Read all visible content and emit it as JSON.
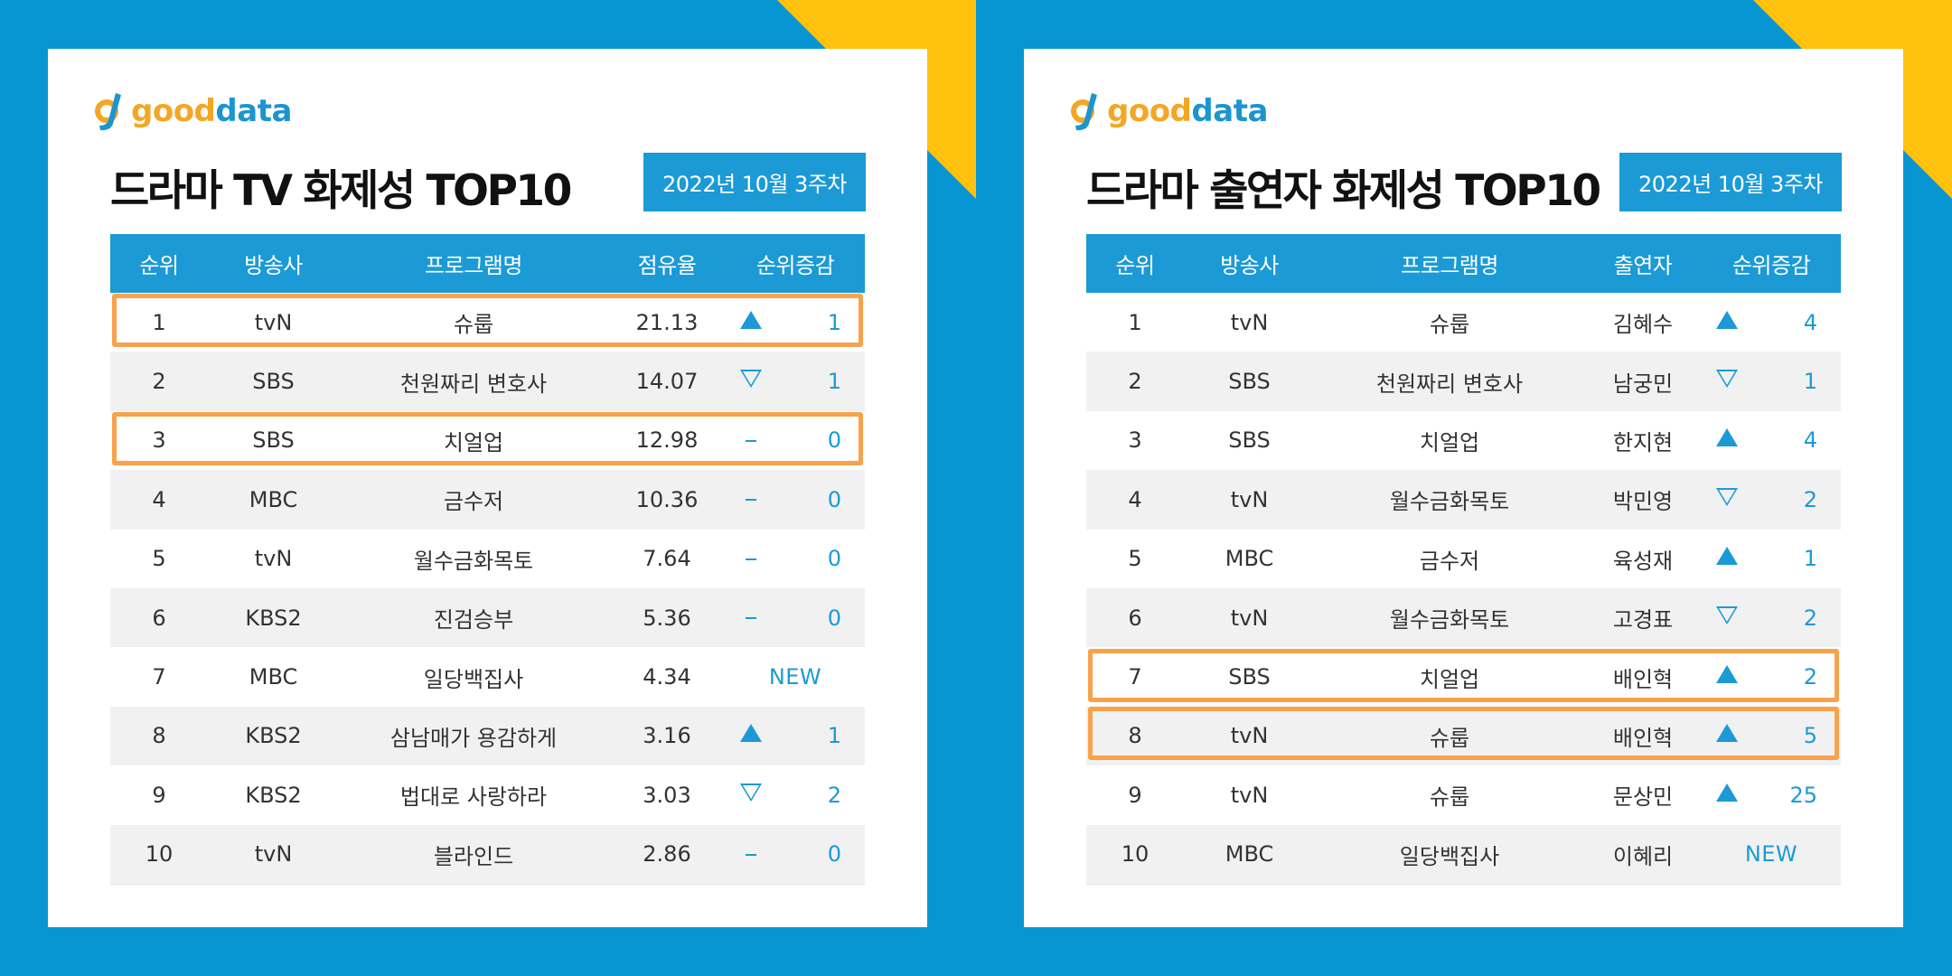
{
  "logo": {
    "good": "good",
    "data": "data"
  },
  "colors": {
    "background": "#0896d2",
    "accent": "#1b9ad6",
    "corner": "#ffc20e",
    "highlight": "#f9a24c"
  },
  "panels": [
    {
      "title": "드라마 TV 화제성 TOP10",
      "date": "2022년 10월 3주차",
      "headers": [
        "순위",
        "방송사",
        "프로그램명",
        "점유율",
        "순위증감"
      ],
      "rows": [
        {
          "rank": "1",
          "broadcaster": "tvN",
          "program": "슈룹",
          "value": "21.13",
          "change_dir": "up",
          "change": "1"
        },
        {
          "rank": "2",
          "broadcaster": "SBS",
          "program": "천원짜리 변호사",
          "value": "14.07",
          "change_dir": "down",
          "change": "1"
        },
        {
          "rank": "3",
          "broadcaster": "SBS",
          "program": "치얼업",
          "value": "12.98",
          "change_dir": "same",
          "change": "0"
        },
        {
          "rank": "4",
          "broadcaster": "MBC",
          "program": "금수저",
          "value": "10.36",
          "change_dir": "same",
          "change": "0"
        },
        {
          "rank": "5",
          "broadcaster": "tvN",
          "program": "월수금화목토",
          "value": "7.64",
          "change_dir": "same",
          "change": "0"
        },
        {
          "rank": "6",
          "broadcaster": "KBS2",
          "program": "진검승부",
          "value": "5.36",
          "change_dir": "same",
          "change": "0"
        },
        {
          "rank": "7",
          "broadcaster": "MBC",
          "program": "일당백집사",
          "value": "4.34",
          "change_dir": "new",
          "change": "NEW"
        },
        {
          "rank": "8",
          "broadcaster": "KBS2",
          "program": "삼남매가 용감하게",
          "value": "3.16",
          "change_dir": "up",
          "change": "1"
        },
        {
          "rank": "9",
          "broadcaster": "KBS2",
          "program": "법대로 사랑하라",
          "value": "3.03",
          "change_dir": "down",
          "change": "2"
        },
        {
          "rank": "10",
          "broadcaster": "tvN",
          "program": "블라인드",
          "value": "2.86",
          "change_dir": "same",
          "change": "0"
        }
      ],
      "highlighted_ranks": [
        "1",
        "3"
      ]
    },
    {
      "title": "드라마 출연자 화제성 TOP10",
      "date": "2022년 10월 3주차",
      "headers": [
        "순위",
        "방송사",
        "프로그램명",
        "출연자",
        "순위증감"
      ],
      "rows": [
        {
          "rank": "1",
          "broadcaster": "tvN",
          "program": "슈룹",
          "value": "김혜수",
          "change_dir": "up",
          "change": "4"
        },
        {
          "rank": "2",
          "broadcaster": "SBS",
          "program": "천원짜리 변호사",
          "value": "남궁민",
          "change_dir": "down",
          "change": "1"
        },
        {
          "rank": "3",
          "broadcaster": "SBS",
          "program": "치얼업",
          "value": "한지현",
          "change_dir": "up",
          "change": "4"
        },
        {
          "rank": "4",
          "broadcaster": "tvN",
          "program": "월수금화목토",
          "value": "박민영",
          "change_dir": "down",
          "change": "2"
        },
        {
          "rank": "5",
          "broadcaster": "MBC",
          "program": "금수저",
          "value": "육성재",
          "change_dir": "up",
          "change": "1"
        },
        {
          "rank": "6",
          "broadcaster": "tvN",
          "program": "월수금화목토",
          "value": "고경표",
          "change_dir": "down",
          "change": "2"
        },
        {
          "rank": "7",
          "broadcaster": "SBS",
          "program": "치얼업",
          "value": "배인혁",
          "change_dir": "up",
          "change": "2"
        },
        {
          "rank": "8",
          "broadcaster": "tvN",
          "program": "슈룹",
          "value": "배인혁",
          "change_dir": "up",
          "change": "5"
        },
        {
          "rank": "9",
          "broadcaster": "tvN",
          "program": "슈룹",
          "value": "문상민",
          "change_dir": "up",
          "change": "25"
        },
        {
          "rank": "10",
          "broadcaster": "MBC",
          "program": "일당백집사",
          "value": "이혜리",
          "change_dir": "new",
          "change": "NEW"
        }
      ],
      "highlighted_ranks": [
        "7-8"
      ]
    }
  ]
}
